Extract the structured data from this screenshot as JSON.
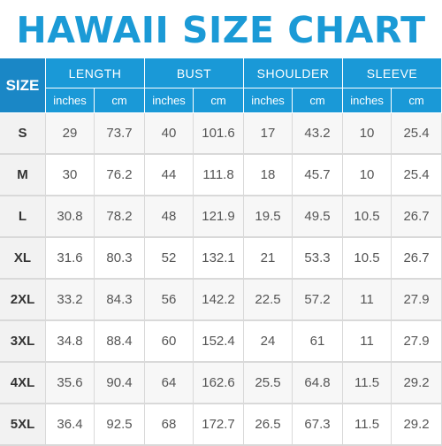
{
  "title": "HAWAII SIZE CHART",
  "colors": {
    "title": "#1b9ad6",
    "header": "#1a99d7",
    "size_header": "#1a87c6"
  },
  "chart_data": {
    "type": "table",
    "title": "HAWAII SIZE CHART",
    "size_label": "SIZE",
    "groups": [
      "LENGTH",
      "BUST",
      "SHOULDER",
      "SLEEVE"
    ],
    "units": [
      "inches",
      "cm"
    ],
    "rows": [
      {
        "size": "S",
        "values": [
          "29",
          "73.7",
          "40",
          "101.6",
          "17",
          "43.2",
          "10",
          "25.4"
        ]
      },
      {
        "size": "M",
        "values": [
          "30",
          "76.2",
          "44",
          "111.8",
          "18",
          "45.7",
          "10",
          "25.4"
        ]
      },
      {
        "size": "L",
        "values": [
          "30.8",
          "78.2",
          "48",
          "121.9",
          "19.5",
          "49.5",
          "10.5",
          "26.7"
        ]
      },
      {
        "size": "XL",
        "values": [
          "31.6",
          "80.3",
          "52",
          "132.1",
          "21",
          "53.3",
          "10.5",
          "26.7"
        ]
      },
      {
        "size": "2XL",
        "values": [
          "33.2",
          "84.3",
          "56",
          "142.2",
          "22.5",
          "57.2",
          "11",
          "27.9"
        ]
      },
      {
        "size": "3XL",
        "values": [
          "34.8",
          "88.4",
          "60",
          "152.4",
          "24",
          "61",
          "11",
          "27.9"
        ]
      },
      {
        "size": "4XL",
        "values": [
          "35.6",
          "90.4",
          "64",
          "162.6",
          "25.5",
          "64.8",
          "11.5",
          "29.2"
        ]
      },
      {
        "size": "5XL",
        "values": [
          "36.4",
          "92.5",
          "68",
          "172.7",
          "26.5",
          "67.3",
          "11.5",
          "29.2"
        ]
      }
    ]
  }
}
